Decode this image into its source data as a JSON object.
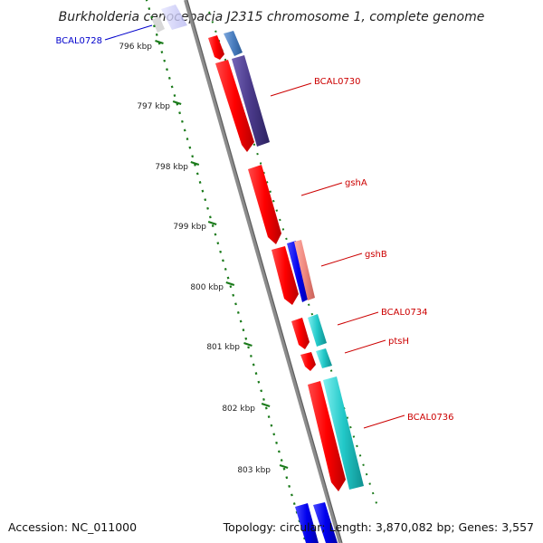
{
  "title": "Burkholderia cenocepacia J2315 chromosome 1, complete genome",
  "footer": {
    "accession": "Accession: NC_011000",
    "stats": "Topology: circular; Length: 3,870,082 bp; Genes: 3,557"
  },
  "ticks": [
    "796 kbp",
    "797 kbp",
    "798 kbp",
    "799 kbp",
    "800 kbp",
    "801 kbp",
    "802 kbp",
    "803 kbp"
  ],
  "gene_labels": [
    {
      "id": "bcal0728",
      "text": "BCAL0728",
      "color": "#0000cc"
    },
    {
      "id": "bcal0730",
      "text": "BCAL0730",
      "color": "#cc0000"
    },
    {
      "id": "gsha",
      "text": "gshA",
      "color": "#cc0000"
    },
    {
      "id": "gshb",
      "text": "gshB",
      "color": "#cc0000"
    },
    {
      "id": "bcal0734",
      "text": "BCAL0734",
      "color": "#cc0000"
    },
    {
      "id": "ptsh",
      "text": "ptsH",
      "color": "#cc0000"
    },
    {
      "id": "bcal0736",
      "text": "BCAL0736",
      "color": "#cc0000"
    }
  ],
  "colors": {
    "cds": "#ff0000",
    "purple": "#4a3a8a",
    "steelblue": "#4b7fc0",
    "blue": "#0000ee",
    "salmon": "#f08a80",
    "cyan": "#22c8c8",
    "backbone": "#808080",
    "tick": "#1a7a1a"
  }
}
